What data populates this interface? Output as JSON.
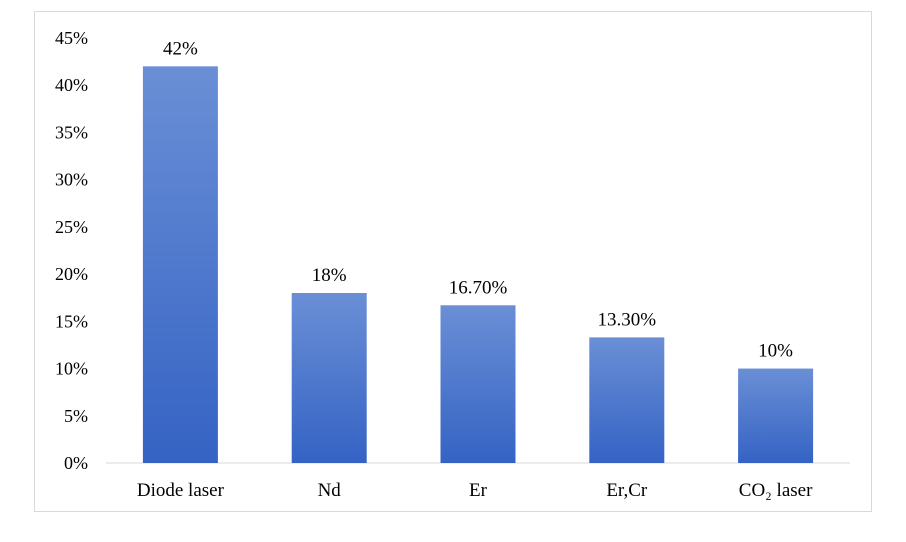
{
  "chart_data": {
    "type": "bar",
    "categories": [
      "Diode laser",
      "Nd",
      "Er",
      "Er,Cr",
      "CO₂ laser"
    ],
    "values": [
      42,
      18,
      16.7,
      13.3,
      10
    ],
    "data_labels": [
      "42%",
      "18%",
      "16.70%",
      "13.30%",
      "10%"
    ],
    "y_ticks": [
      "0%",
      "5%",
      "10%",
      "15%",
      "20%",
      "25%",
      "30%",
      "35%",
      "40%",
      "45%"
    ],
    "ylim": [
      0,
      45
    ],
    "grid": false,
    "legend": "none",
    "bar_color_top": "#6a8fd6",
    "bar_color_bottom": "#3563c4"
  }
}
